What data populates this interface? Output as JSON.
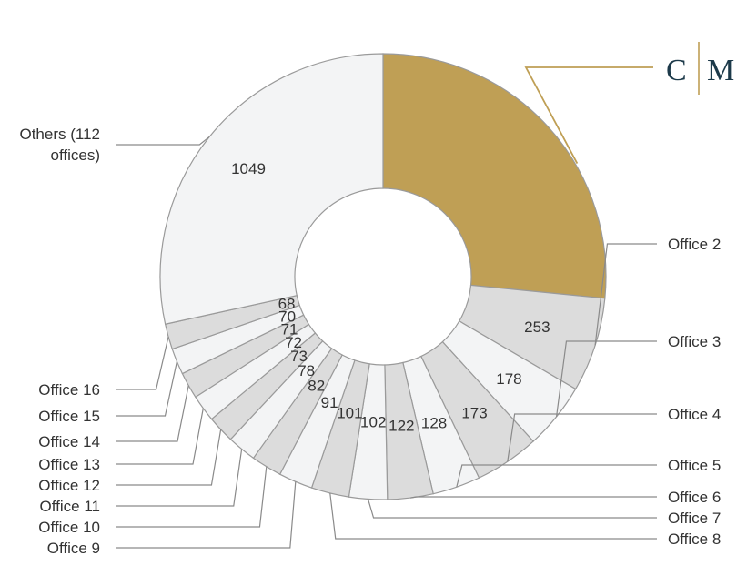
{
  "chart_data": {
    "type": "pie",
    "variant": "donut",
    "values": [
      980,
      253,
      178,
      173,
      128,
      122,
      102,
      101,
      91,
      82,
      78,
      73,
      72,
      71,
      70,
      68,
      1049
    ],
    "value_labels": [
      "",
      "253",
      "178",
      "173",
      "128",
      "122",
      "102",
      "101",
      "91",
      "82",
      "78",
      "73",
      "72",
      "71",
      "70",
      "68",
      "1049"
    ],
    "labels": [
      "",
      "Office 2",
      "Office 3",
      "Office 4",
      "Office 5",
      "Office 6",
      "Office 7",
      "Office 8",
      "Office 9",
      "Office 10",
      "Office 11",
      "Office 12",
      "Office 13",
      "Office 14",
      "Office 15",
      "Office 16",
      "Others (112\noffices)"
    ],
    "colors": [
      "#bf9f55",
      "#dcdcdc",
      "#f3f4f5",
      "#dcdcdc",
      "#f3f4f5",
      "#dcdcdc",
      "#f3f4f5",
      "#dcdcdc",
      "#f3f4f5",
      "#dcdcdc",
      "#f3f4f5",
      "#dcdcdc",
      "#f3f4f5",
      "#dcdcdc",
      "#f3f4f5",
      "#dcdcdc",
      "#f3f4f5"
    ],
    "highlight_color": "#bf9f55",
    "logo": {
      "letter_left": "C",
      "letter_right": "M",
      "color": "#1d3a4a",
      "divider_color": "#bf9f55"
    }
  }
}
